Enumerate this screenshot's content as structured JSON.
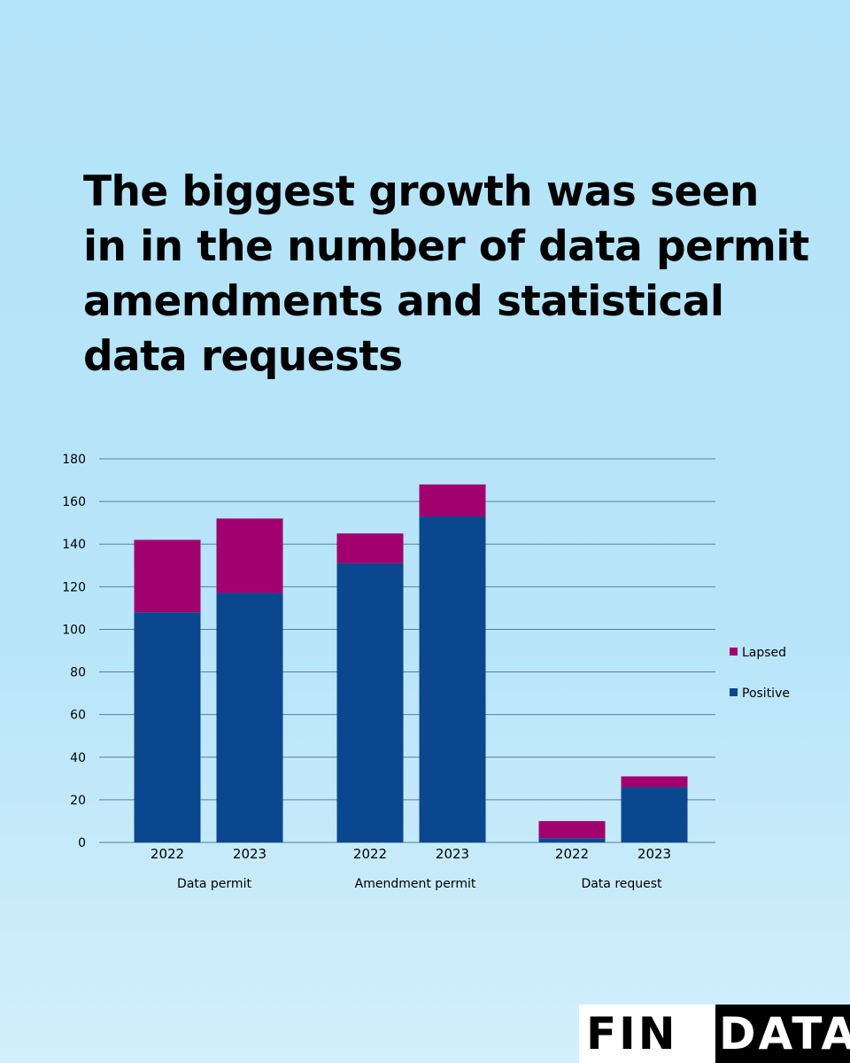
{
  "headline": "The biggest growth was seen in in the number of data permit amendments and statistical data requests",
  "brand": {
    "left": "FIN",
    "right": "DATA"
  },
  "colors": {
    "positive": "#0b478e",
    "lapsed": "#a2006e",
    "grid": "#5b7e98"
  },
  "chart_data": {
    "type": "bar",
    "stacked": true,
    "groups": [
      "Data permit",
      "Amendment permit",
      "Data request"
    ],
    "categories": [
      "2022",
      "2023",
      "2022",
      "2023",
      "2022",
      "2023"
    ],
    "series": [
      {
        "name": "Positive",
        "values": [
          108,
          117,
          131,
          153,
          2,
          26
        ]
      },
      {
        "name": "Lapsed",
        "values": [
          34,
          35,
          14,
          15,
          8,
          5
        ]
      }
    ],
    "ylim": [
      0,
      180
    ],
    "yticks": [
      "0",
      "20",
      "40",
      "60",
      "80",
      "100",
      "120",
      "140",
      "160",
      "180"
    ],
    "grid": true,
    "legend": "right",
    "title": "",
    "xlabel": "",
    "ylabel": ""
  }
}
